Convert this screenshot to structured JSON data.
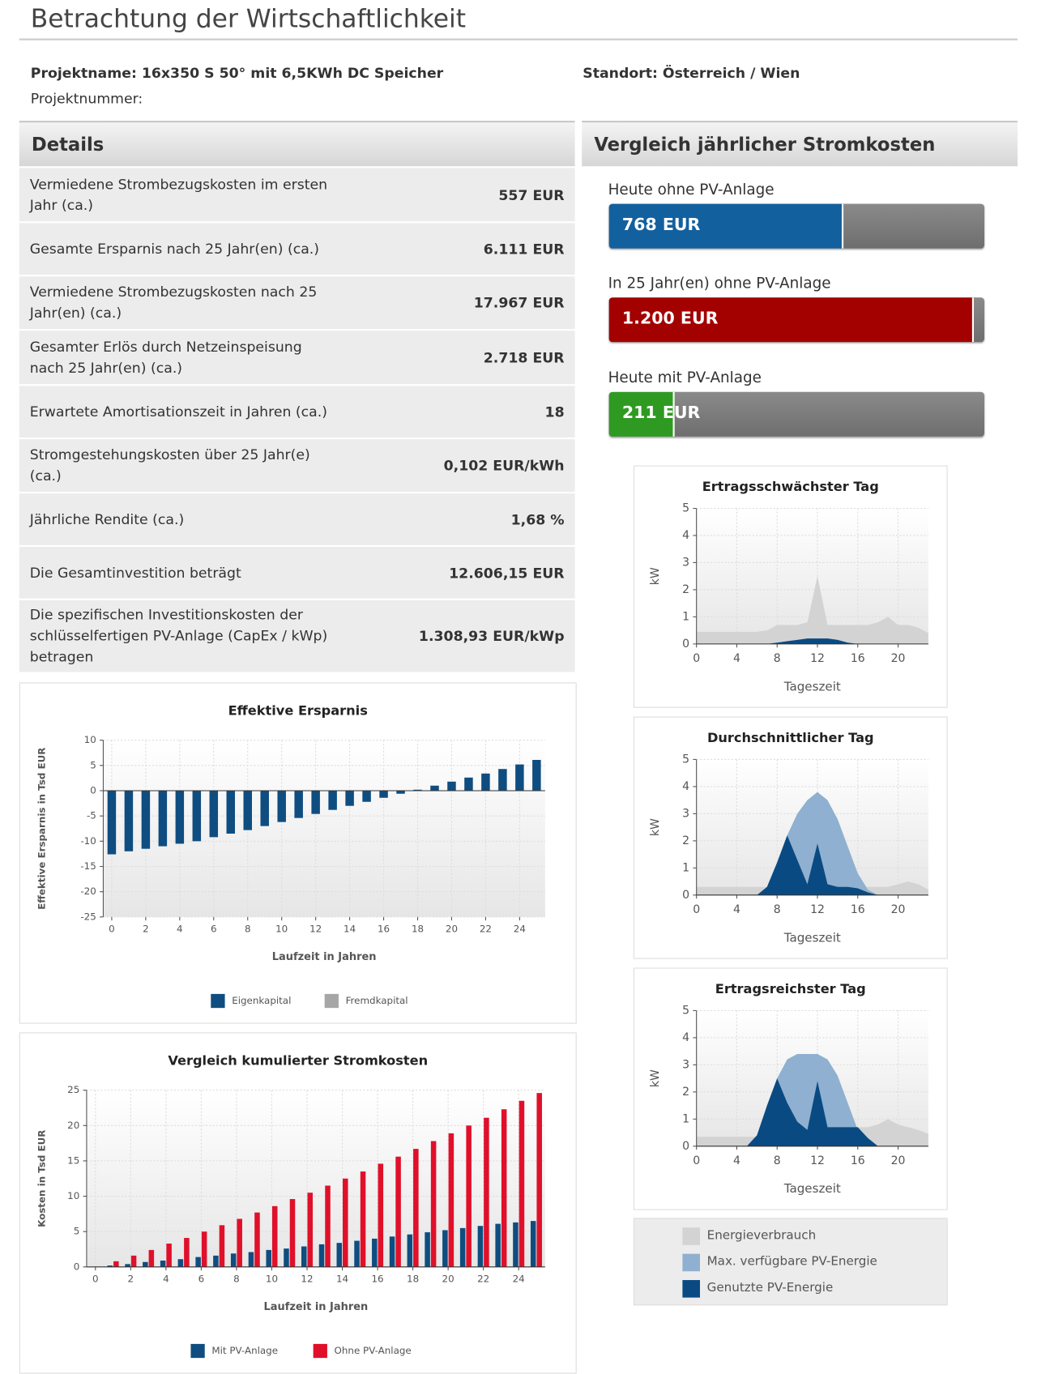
{
  "title": "Betrachtung der Wirtschaftlichkeit",
  "project": {
    "name": "Projektname: 16x350 S 50° mit 6,5KWh DC Speicher",
    "number": "Projektnummer:",
    "location": "Standort: Österreich / Wien"
  },
  "details": {
    "title": "Details",
    "rows": [
      [
        "Vermiedene Strombezugskosten im ersten Jahr (ca.)",
        "557 EUR"
      ],
      [
        "Gesamte Ersparnis nach 25 Jahr(en) (ca.)",
        "6.111 EUR"
      ],
      [
        "Vermiedene Strombezugskosten nach 25 Jahr(en) (ca.)",
        "17.967 EUR"
      ],
      [
        "Gesamter Erlös durch Netzeinspeisung nach 25 Jahr(en) (ca.)",
        "2.718 EUR"
      ],
      [
        "Erwartete Amortisationszeit in Jahren (ca.)",
        "18"
      ],
      [
        "Stromgestehungskosten über 25 Jahr(e) (ca.)",
        "0,102 EUR/kWh"
      ],
      [
        "Jährliche Rendite (ca.)",
        "1,68 %"
      ],
      [
        "Die Gesamtinvestition beträgt",
        "12.606,15 EUR"
      ],
      [
        "Die spezifischen Investitionskosten der schlüsselfertigen PV-Anlage (CapEx / kWp) betragen",
        "1.308,93 EUR/kWp"
      ]
    ]
  },
  "comparison": {
    "type": "bar",
    "title": "Vergleich jährlicher Stromkosten",
    "categories": [
      "Heute ohne PV-Anlage",
      "In 25 Jahr(en) ohne PV-Anlage",
      "Heute mit PV-Anlage"
    ],
    "values": [
      768,
      1200,
      211
    ],
    "value_labels": [
      "768 EUR",
      "1.200 EUR",
      "211 EUR"
    ],
    "colors": [
      "#13609f",
      "#a30000",
      "#2f9a22"
    ]
  },
  "charts": [
    {
      "type": "bar",
      "title": "Effektive Ersparnis",
      "x_label": "Laufzeit in Jahren",
      "y_label": "Effektive Ersparnis in Tsd EUR",
      "x": [
        0,
        1,
        2,
        3,
        4,
        5,
        6,
        7,
        8,
        9,
        10,
        11,
        12,
        13,
        14,
        15,
        16,
        17,
        18,
        19,
        20,
        21,
        22,
        23,
        24,
        25
      ],
      "series": [
        {
          "name": "Eigenkapital",
          "color": "#0f4d80",
          "values": [
            -12.6,
            -12,
            -11.5,
            -11,
            -10.5,
            -10,
            -9.2,
            -8.5,
            -7.8,
            -7,
            -6.2,
            -5.4,
            -4.6,
            -3.8,
            -3,
            -2.2,
            -1.4,
            -0.6,
            0.2,
            1,
            1.8,
            2.6,
            3.4,
            4.3,
            5.2,
            6.1
          ]
        },
        {
          "name": "Fremdkapital",
          "color": "#a6a6a6",
          "values": [
            null,
            null,
            null,
            null,
            null,
            null,
            null,
            null,
            null,
            null,
            null,
            null,
            null,
            null,
            null,
            null,
            null,
            null,
            null,
            null,
            null,
            null,
            null,
            null,
            null,
            null
          ]
        }
      ],
      "xlim": [
        -0.5,
        25.5
      ],
      "xticks": [
        0,
        2,
        4,
        6,
        8,
        10,
        12,
        14,
        16,
        18,
        20,
        22,
        24
      ],
      "ylim": [
        -25,
        10
      ],
      "yticks": [
        -25,
        -20,
        -15,
        -10,
        -5,
        0,
        5,
        10
      ],
      "grid": true
    },
    {
      "type": "bar",
      "title": "Vergleich kumulierter Stromkosten",
      "x_label": "Laufzeit in Jahren",
      "y_label": "Kosten in Tsd EUR",
      "x": [
        0,
        1,
        2,
        3,
        4,
        5,
        6,
        7,
        8,
        9,
        10,
        11,
        12,
        13,
        14,
        15,
        16,
        17,
        18,
        19,
        20,
        21,
        22,
        23,
        24,
        25
      ],
      "series": [
        {
          "name": "Mit PV-Anlage",
          "color": "#0f4d80",
          "values": [
            0,
            0.2,
            0.4,
            0.7,
            0.9,
            1.1,
            1.4,
            1.6,
            1.9,
            2.1,
            2.4,
            2.6,
            2.9,
            3.2,
            3.4,
            3.7,
            4,
            4.3,
            4.6,
            4.9,
            5.2,
            5.5,
            5.8,
            6.1,
            6.3,
            6.5
          ]
        },
        {
          "name": "Ohne PV-Anlage",
          "color": "#e0102a",
          "values": [
            0,
            0.8,
            1.6,
            2.4,
            3.3,
            4.1,
            5,
            5.9,
            6.8,
            7.7,
            8.6,
            9.6,
            10.5,
            11.5,
            12.5,
            13.5,
            14.6,
            15.6,
            16.7,
            17.8,
            18.9,
            20,
            21.1,
            22.3,
            23.5,
            24.6
          ]
        }
      ],
      "xlim": [
        -0.5,
        25.5
      ],
      "xticks": [
        0,
        2,
        4,
        6,
        8,
        10,
        12,
        14,
        16,
        18,
        20,
        22,
        24
      ],
      "ylim": [
        0,
        25
      ],
      "yticks": [
        0,
        5,
        10,
        15,
        20,
        25
      ],
      "grid": true
    },
    {
      "type": "area",
      "title": "Ertragsschwächster Tag",
      "x_label": "Tageszeit",
      "y_label": "kW",
      "x": [
        0,
        1,
        2,
        3,
        4,
        5,
        6,
        7,
        8,
        9,
        10,
        11,
        12,
        13,
        14,
        15,
        16,
        17,
        18,
        19,
        20,
        21,
        22,
        23
      ],
      "series": [
        {
          "name": "Energieverbrauch",
          "color": "#d3d3d3",
          "values": [
            0.45,
            0.45,
            0.45,
            0.45,
            0.45,
            0.45,
            0.45,
            0.5,
            0.7,
            0.7,
            0.7,
            0.8,
            2.5,
            0.7,
            0.7,
            0.7,
            0.7,
            0.7,
            0.8,
            1,
            0.7,
            0.7,
            0.6,
            0.4
          ]
        },
        {
          "name": "Max. verfügbare PV-Energie",
          "color": "#8fb0d0",
          "values": [
            0,
            0,
            0,
            0,
            0,
            0,
            0,
            0,
            0.05,
            0.1,
            0.15,
            0.2,
            0.2,
            0.2,
            0.15,
            0.05,
            0,
            0,
            0,
            0,
            0,
            0,
            0,
            0
          ]
        },
        {
          "name": "Genutzte PV-Energie",
          "color": "#0a4a82",
          "values": [
            0,
            0,
            0,
            0,
            0,
            0,
            0,
            0,
            0.05,
            0.1,
            0.15,
            0.2,
            0.2,
            0.2,
            0.15,
            0.05,
            0,
            0,
            0,
            0,
            0,
            0,
            0,
            0
          ]
        }
      ],
      "xlim": [
        0,
        23
      ],
      "xticks": [
        0,
        4,
        8,
        12,
        16,
        20
      ],
      "ylim": [
        0,
        5
      ],
      "yticks": [
        0,
        1,
        2,
        3,
        4,
        5
      ],
      "grid": true
    },
    {
      "type": "area",
      "title": "Durchschnittlicher Tag",
      "x_label": "Tageszeit",
      "y_label": "kW",
      "x": [
        0,
        1,
        2,
        3,
        4,
        5,
        6,
        7,
        8,
        9,
        10,
        11,
        12,
        13,
        14,
        15,
        16,
        17,
        18,
        19,
        20,
        21,
        22,
        23
      ],
      "series": [
        {
          "name": "Energieverbrauch",
          "color": "#d3d3d3",
          "values": [
            0.3,
            0.3,
            0.3,
            0.3,
            0.3,
            0.3,
            0.3,
            0.3,
            0.3,
            0.3,
            0.3,
            0.4,
            1.9,
            0.4,
            0.3,
            0.3,
            0.3,
            0.3,
            0.3,
            0.3,
            0.4,
            0.5,
            0.4,
            0.2
          ]
        },
        {
          "name": "Max. verfügbare PV-Energie",
          "color": "#8fb0d0",
          "values": [
            0,
            0,
            0,
            0,
            0,
            0,
            0,
            0.3,
            1.2,
            2.2,
            3,
            3.5,
            3.8,
            3.5,
            2.8,
            1.8,
            0.8,
            0.2,
            0,
            0,
            0,
            0,
            0,
            0
          ]
        },
        {
          "name": "Genutzte PV-Energie",
          "color": "#0a4a82",
          "values": [
            0,
            0,
            0,
            0,
            0,
            0,
            0,
            0.3,
            1.2,
            2.2,
            1.3,
            0.4,
            1.9,
            0.4,
            0.3,
            0.3,
            0.25,
            0.1,
            0,
            0,
            0,
            0,
            0,
            0
          ]
        }
      ],
      "xlim": [
        0,
        23
      ],
      "xticks": [
        0,
        4,
        8,
        12,
        16,
        20
      ],
      "ylim": [
        0,
        5
      ],
      "yticks": [
        0,
        1,
        2,
        3,
        4,
        5
      ],
      "grid": true
    },
    {
      "type": "area",
      "title": "Ertragsreichster Tag",
      "x_label": "Tageszeit",
      "y_label": "kW",
      "x": [
        0,
        1,
        2,
        3,
        4,
        5,
        6,
        7,
        8,
        9,
        10,
        11,
        12,
        13,
        14,
        15,
        16,
        17,
        18,
        19,
        20,
        21,
        22,
        23
      ],
      "series": [
        {
          "name": "Energieverbrauch",
          "color": "#d3d3d3",
          "values": [
            0.35,
            0.35,
            0.35,
            0.35,
            0.35,
            0.35,
            0.35,
            0.4,
            0.5,
            0.6,
            0.6,
            0.6,
            0.7,
            0.7,
            0.7,
            0.7,
            0.7,
            0.7,
            0.8,
            1,
            0.8,
            0.7,
            0.6,
            0.45
          ]
        },
        {
          "name": "Max. verfügbare PV-Energie",
          "color": "#8fb0d0",
          "values": [
            0,
            0,
            0,
            0,
            0,
            0,
            0.4,
            1.5,
            2.5,
            3.2,
            3.4,
            3.4,
            3.4,
            3.2,
            2.6,
            1.6,
            0.6,
            0,
            0,
            0,
            0,
            0,
            0,
            0
          ]
        },
        {
          "name": "Genutzte PV-Energie",
          "color": "#0a4a82",
          "values": [
            0,
            0,
            0,
            0,
            0,
            0,
            0.4,
            1.5,
            2.5,
            1.6,
            0.9,
            0.6,
            2.4,
            0.7,
            0.7,
            0.7,
            0.7,
            0.3,
            0,
            0,
            0,
            0,
            0,
            0
          ]
        }
      ],
      "xlim": [
        0,
        23
      ],
      "xticks": [
        0,
        4,
        8,
        12,
        16,
        20
      ],
      "ylim": [
        0,
        5
      ],
      "yticks": [
        0,
        1,
        2,
        3,
        4,
        5
      ],
      "grid": true
    }
  ]
}
